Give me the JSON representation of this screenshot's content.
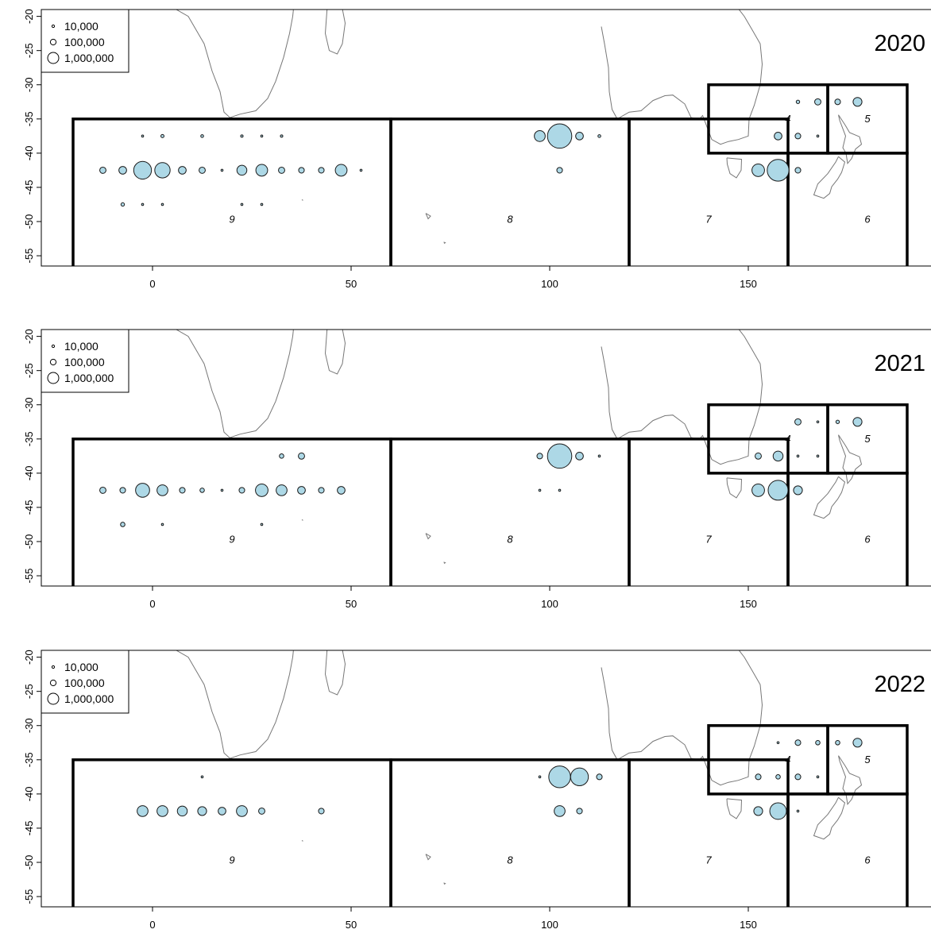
{
  "colors": {
    "bubble_fill": "#add8e6",
    "bubble_stroke": "#1a1a1a",
    "coast": "#777777",
    "region_line": "#000000"
  },
  "legend": {
    "labels": [
      "10,000",
      "100,000",
      "1,000,000"
    ],
    "values": [
      10000,
      100000,
      1000000
    ]
  },
  "axes": {
    "x_ticks": [
      0,
      50,
      100,
      150
    ],
    "x_tick_labels": [
      "0",
      "50",
      "100",
      "150"
    ],
    "y_ticks": [
      -20,
      -25,
      -30,
      -35,
      -40,
      -45,
      -50,
      -55
    ],
    "y_tick_labels": [
      "-20",
      "-25",
      "-30",
      "-35",
      "-40",
      "-45",
      "-50",
      "-55"
    ],
    "xlim": [
      -28,
      196
    ],
    "ylim": [
      -56.5,
      -19
    ]
  },
  "region_labels": [
    {
      "label": "9",
      "lon": 20,
      "lat": -50.2
    },
    {
      "label": "8",
      "lon": 90,
      "lat": -50.2
    },
    {
      "label": "7",
      "lon": 140,
      "lat": -50.2
    },
    {
      "label": "6",
      "lon": 180,
      "lat": -50.2
    },
    {
      "label": "4",
      "lon": 160,
      "lat": -35.5
    },
    {
      "label": "5",
      "lon": 180,
      "lat": -35.5
    }
  ],
  "chart_data": [
    {
      "type": "bubble-map",
      "year_label": "2020",
      "points": [
        {
          "lon": -2.5,
          "lat": -37.5,
          "v": 3000
        },
        {
          "lon": 2.5,
          "lat": -37.5,
          "v": 25000
        },
        {
          "lon": 12.5,
          "lat": -37.5,
          "v": 20000
        },
        {
          "lon": 22.5,
          "lat": -37.5,
          "v": 15000
        },
        {
          "lon": 27.5,
          "lat": -37.5,
          "v": 4000
        },
        {
          "lon": 32.5,
          "lat": -37.5,
          "v": 15000
        },
        {
          "lon": -12.5,
          "lat": -42.5,
          "v": 100000
        },
        {
          "lon": -7.5,
          "lat": -42.5,
          "v": 150000
        },
        {
          "lon": -2.5,
          "lat": -42.5,
          "v": 800000
        },
        {
          "lon": 2.5,
          "lat": -42.5,
          "v": 600000
        },
        {
          "lon": 7.5,
          "lat": -42.5,
          "v": 150000
        },
        {
          "lon": 12.5,
          "lat": -42.5,
          "v": 100000
        },
        {
          "lon": 17.5,
          "lat": -42.5,
          "v": 8000
        },
        {
          "lon": 22.5,
          "lat": -42.5,
          "v": 250000
        },
        {
          "lon": 27.5,
          "lat": -42.5,
          "v": 350000
        },
        {
          "lon": 32.5,
          "lat": -42.5,
          "v": 100000
        },
        {
          "lon": 37.5,
          "lat": -42.5,
          "v": 80000
        },
        {
          "lon": 42.5,
          "lat": -42.5,
          "v": 80000
        },
        {
          "lon": 47.5,
          "lat": -42.5,
          "v": 350000
        },
        {
          "lon": 52.5,
          "lat": -42.5,
          "v": 4000
        },
        {
          "lon": -7.5,
          "lat": -47.5,
          "v": 30000
        },
        {
          "lon": -2.5,
          "lat": -47.5,
          "v": 10000
        },
        {
          "lon": 2.5,
          "lat": -47.5,
          "v": 10000
        },
        {
          "lon": 22.5,
          "lat": -47.5,
          "v": 10000
        },
        {
          "lon": 27.5,
          "lat": -47.5,
          "v": 5000
        },
        {
          "lon": 97.5,
          "lat": -37.5,
          "v": 300000
        },
        {
          "lon": 102.5,
          "lat": -37.5,
          "v": 1500000
        },
        {
          "lon": 107.5,
          "lat": -37.5,
          "v": 150000
        },
        {
          "lon": 112.5,
          "lat": -37.5,
          "v": 20000
        },
        {
          "lon": 102.5,
          "lat": -42.5,
          "v": 80000
        },
        {
          "lon": 152.5,
          "lat": -42.5,
          "v": 400000
        },
        {
          "lon": 157.5,
          "lat": -42.5,
          "v": 1200000
        },
        {
          "lon": 162.5,
          "lat": -42.5,
          "v": 80000
        },
        {
          "lon": 162.5,
          "lat": -32.5,
          "v": 30000
        },
        {
          "lon": 167.5,
          "lat": -32.5,
          "v": 100000
        },
        {
          "lon": 157.5,
          "lat": -37.5,
          "v": 150000
        },
        {
          "lon": 162.5,
          "lat": -37.5,
          "v": 80000
        },
        {
          "lon": 167.5,
          "lat": -37.5,
          "v": 8000
        },
        {
          "lon": 172.5,
          "lat": -32.5,
          "v": 80000
        },
        {
          "lon": 177.5,
          "lat": -32.5,
          "v": 200000
        }
      ]
    },
    {
      "type": "bubble-map",
      "year_label": "2021",
      "points": [
        {
          "lon": 32.5,
          "lat": -37.5,
          "v": 50000
        },
        {
          "lon": 37.5,
          "lat": -37.5,
          "v": 100000
        },
        {
          "lon": -12.5,
          "lat": -42.5,
          "v": 100000
        },
        {
          "lon": -7.5,
          "lat": -42.5,
          "v": 80000
        },
        {
          "lon": -2.5,
          "lat": -42.5,
          "v": 500000
        },
        {
          "lon": 2.5,
          "lat": -42.5,
          "v": 300000
        },
        {
          "lon": 7.5,
          "lat": -42.5,
          "v": 80000
        },
        {
          "lon": 12.5,
          "lat": -42.5,
          "v": 50000
        },
        {
          "lon": 17.5,
          "lat": -42.5,
          "v": 5000
        },
        {
          "lon": 22.5,
          "lat": -42.5,
          "v": 80000
        },
        {
          "lon": 27.5,
          "lat": -42.5,
          "v": 400000
        },
        {
          "lon": 32.5,
          "lat": -42.5,
          "v": 300000
        },
        {
          "lon": 37.5,
          "lat": -42.5,
          "v": 150000
        },
        {
          "lon": 42.5,
          "lat": -42.5,
          "v": 80000
        },
        {
          "lon": 47.5,
          "lat": -42.5,
          "v": 150000
        },
        {
          "lon": -7.5,
          "lat": -47.5,
          "v": 50000
        },
        {
          "lon": 2.5,
          "lat": -47.5,
          "v": 5000
        },
        {
          "lon": 27.5,
          "lat": -47.5,
          "v": 5000
        },
        {
          "lon": 97.5,
          "lat": -37.5,
          "v": 80000
        },
        {
          "lon": 102.5,
          "lat": -37.5,
          "v": 1500000
        },
        {
          "lon": 107.5,
          "lat": -37.5,
          "v": 150000
        },
        {
          "lon": 112.5,
          "lat": -37.5,
          "v": 5000
        },
        {
          "lon": 97.5,
          "lat": -42.5,
          "v": 8000
        },
        {
          "lon": 102.5,
          "lat": -42.5,
          "v": 8000
        },
        {
          "lon": 152.5,
          "lat": -42.5,
          "v": 400000
        },
        {
          "lon": 157.5,
          "lat": -42.5,
          "v": 1000000
        },
        {
          "lon": 162.5,
          "lat": -42.5,
          "v": 200000
        },
        {
          "lon": 162.5,
          "lat": -32.5,
          "v": 100000
        },
        {
          "lon": 167.5,
          "lat": -32.5,
          "v": 8000
        },
        {
          "lon": 152.5,
          "lat": -37.5,
          "v": 100000
        },
        {
          "lon": 157.5,
          "lat": -37.5,
          "v": 250000
        },
        {
          "lon": 162.5,
          "lat": -37.5,
          "v": 8000
        },
        {
          "lon": 167.5,
          "lat": -37.5,
          "v": 8000
        },
        {
          "lon": 172.5,
          "lat": -32.5,
          "v": 30000
        },
        {
          "lon": 177.5,
          "lat": -32.5,
          "v": 200000
        }
      ]
    },
    {
      "type": "bubble-map",
      "year_label": "2022",
      "points": [
        {
          "lon": 12.5,
          "lat": -37.5,
          "v": 8000
        },
        {
          "lon": -2.5,
          "lat": -42.5,
          "v": 300000
        },
        {
          "lon": 2.5,
          "lat": -42.5,
          "v": 300000
        },
        {
          "lon": 7.5,
          "lat": -42.5,
          "v": 250000
        },
        {
          "lon": 12.5,
          "lat": -42.5,
          "v": 200000
        },
        {
          "lon": 17.5,
          "lat": -42.5,
          "v": 150000
        },
        {
          "lon": 22.5,
          "lat": -42.5,
          "v": 300000
        },
        {
          "lon": 27.5,
          "lat": -42.5,
          "v": 100000
        },
        {
          "lon": 42.5,
          "lat": -42.5,
          "v": 80000
        },
        {
          "lon": 97.5,
          "lat": -37.5,
          "v": 4000
        },
        {
          "lon": 102.5,
          "lat": -37.5,
          "v": 1200000
        },
        {
          "lon": 107.5,
          "lat": -37.5,
          "v": 800000
        },
        {
          "lon": 112.5,
          "lat": -37.5,
          "v": 80000
        },
        {
          "lon": 102.5,
          "lat": -42.5,
          "v": 300000
        },
        {
          "lon": 107.5,
          "lat": -42.5,
          "v": 80000
        },
        {
          "lon": 152.5,
          "lat": -42.5,
          "v": 200000
        },
        {
          "lon": 157.5,
          "lat": -42.5,
          "v": 700000
        },
        {
          "lon": 162.5,
          "lat": -42.5,
          "v": 8000
        },
        {
          "lon": 157.5,
          "lat": -32.5,
          "v": 4000
        },
        {
          "lon": 162.5,
          "lat": -32.5,
          "v": 80000
        },
        {
          "lon": 167.5,
          "lat": -32.5,
          "v": 50000
        },
        {
          "lon": 152.5,
          "lat": -37.5,
          "v": 80000
        },
        {
          "lon": 157.5,
          "lat": -37.5,
          "v": 50000
        },
        {
          "lon": 162.5,
          "lat": -37.5,
          "v": 80000
        },
        {
          "lon": 167.5,
          "lat": -37.5,
          "v": 8000
        },
        {
          "lon": 172.5,
          "lat": -32.5,
          "v": 50000
        },
        {
          "lon": 177.5,
          "lat": -32.5,
          "v": 200000
        }
      ]
    }
  ]
}
